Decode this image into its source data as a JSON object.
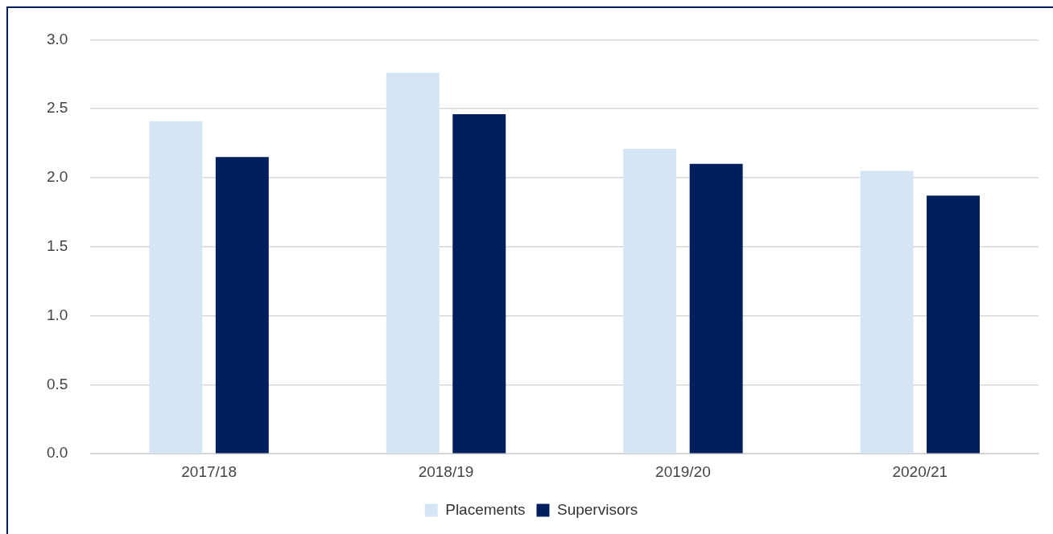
{
  "chart_data": {
    "type": "bar",
    "categories": [
      "2017/18",
      "2018/19",
      "2019/20",
      "2020/21"
    ],
    "series": [
      {
        "name": "Placements",
        "color": "#d6e5f5",
        "values": [
          2.41,
          2.76,
          2.21,
          2.05
        ]
      },
      {
        "name": "Supervisors",
        "color": "#001f5c",
        "values": [
          2.15,
          2.46,
          2.1,
          1.87
        ]
      }
    ],
    "ylim": [
      0,
      3
    ],
    "yticks": [
      {
        "value": 0,
        "label": "0.0"
      },
      {
        "value": 0.5,
        "label": "0.5"
      },
      {
        "value": 1,
        "label": "1.0"
      },
      {
        "value": 1.5,
        "label": "1.5"
      },
      {
        "value": 2,
        "label": "2.0"
      },
      {
        "value": 2.5,
        "label": "2.5"
      },
      {
        "value": 3,
        "label": "3.0"
      }
    ],
    "grid": "y",
    "legend": "bottom"
  }
}
